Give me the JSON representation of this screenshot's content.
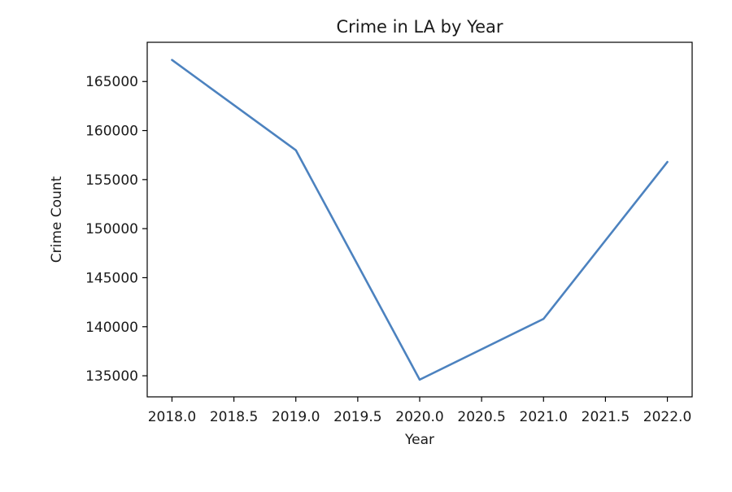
{
  "chart_data": {
    "type": "line",
    "title": "Crime in LA by Year",
    "xlabel": "Year",
    "ylabel": "Crime Count",
    "x": [
      2018.0,
      2019.0,
      2020.0,
      2021.0,
      2022.0
    ],
    "series": [
      {
        "values": [
          167200,
          158000,
          134600,
          140800,
          156800
        ],
        "color": "#4c82bf"
      }
    ],
    "xlim": [
      2017.8,
      2022.2
    ],
    "ylim": [
      132850,
      169000
    ],
    "xticks": [
      2018.0,
      2018.5,
      2019.0,
      2019.5,
      2020.0,
      2020.5,
      2021.0,
      2021.5,
      2022.0
    ],
    "xtick_labels": [
      "2018.0",
      "2018.5",
      "2019.0",
      "2019.5",
      "2020.0",
      "2020.5",
      "2021.0",
      "2021.5",
      "2022.0"
    ],
    "yticks": [
      135000,
      140000,
      145000,
      150000,
      155000,
      160000,
      165000
    ],
    "ytick_labels": [
      "135000",
      "140000",
      "145000",
      "150000",
      "155000",
      "160000",
      "165000"
    ],
    "grid": false,
    "legend": false
  }
}
